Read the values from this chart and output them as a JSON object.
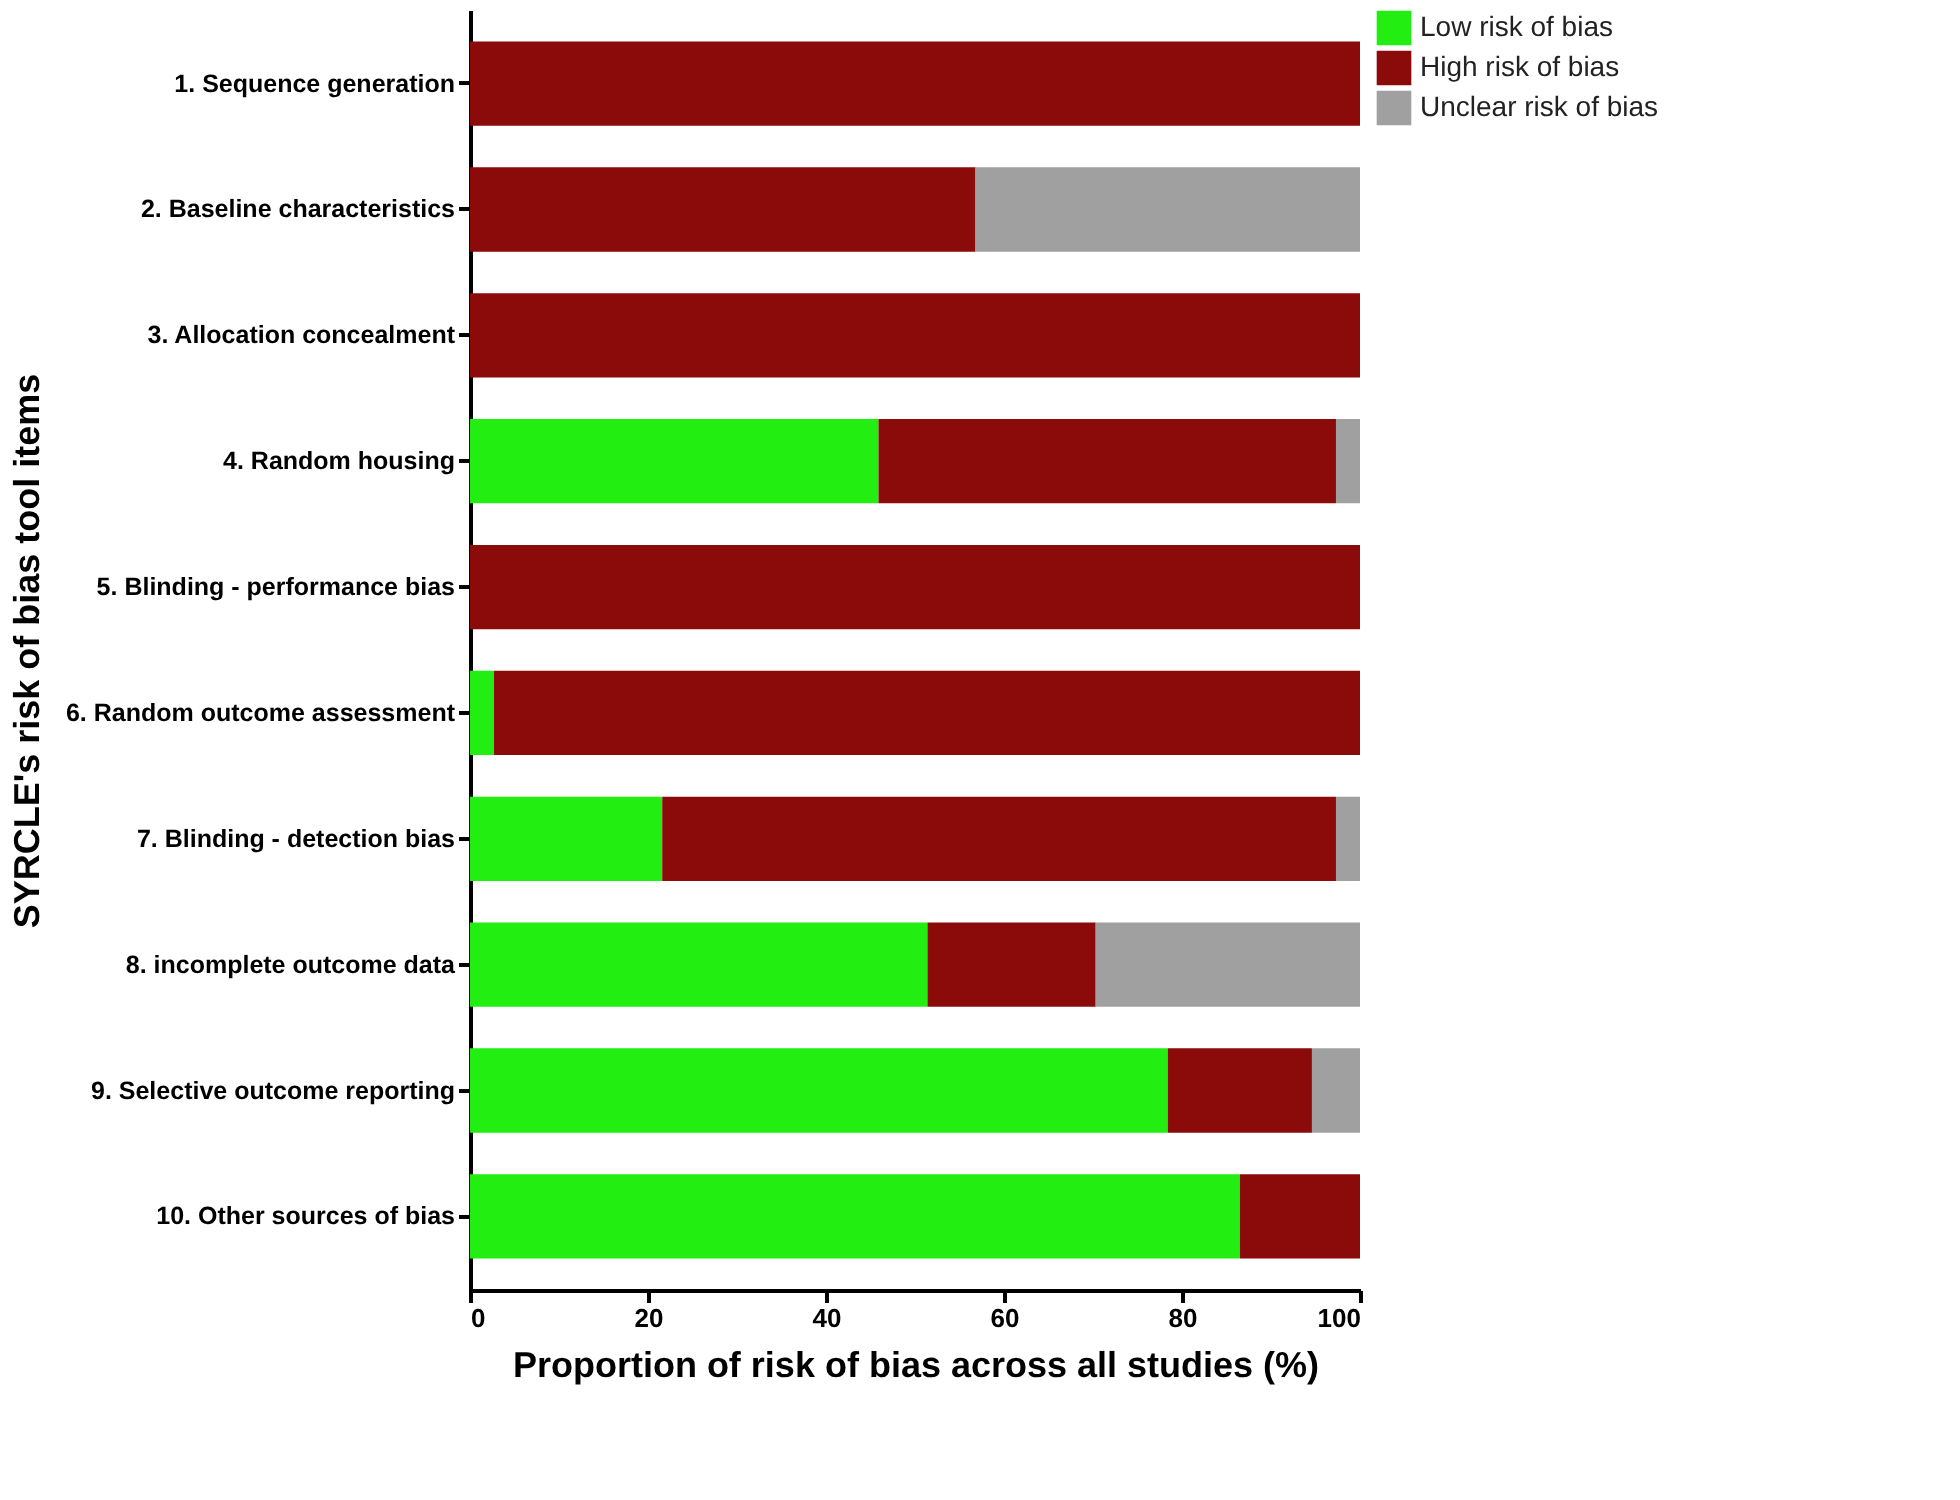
{
  "chart_data": {
    "type": "bar",
    "orientation": "horizontal",
    "stacked": true,
    "xlabel": "Proportion of risk of bias across all studies (%)",
    "ylabel": "SYRCLE's risk of bias tool items",
    "categories": [
      "1. Sequence generation",
      "2. Baseline characteristics",
      "3. Allocation concealment",
      "4. Random housing",
      "5. Blinding - performance bias",
      "6. Random outcome assessment",
      "7. Blinding - detection bias",
      "8. incomplete outcome data",
      "9. Selective outcome reporting",
      "10. Other sources of bias"
    ],
    "series": [
      {
        "name": "Low risk of bias",
        "color": "#22ee11",
        "values": [
          null,
          null,
          null,
          45.9,
          null,
          2.7,
          21.6,
          51.4,
          78.4,
          86.5
        ]
      },
      {
        "name": "High risk of bias",
        "color": "#8b0a0a",
        "values": [
          100,
          56.8,
          100,
          51.4,
          100,
          97.3,
          75.7,
          18.9,
          16.2,
          13.5
        ]
      },
      {
        "name": "Unclear risk of bias",
        "color": "#a0a0a0",
        "values": [
          null,
          43.2,
          null,
          2.7,
          null,
          null,
          2.7,
          29.7,
          5.4,
          null
        ]
      }
    ],
    "xlim": [
      0,
      100
    ],
    "xticks": [
      0,
      20,
      40,
      60,
      80,
      100
    ],
    "grid": false,
    "legend": "top right"
  }
}
